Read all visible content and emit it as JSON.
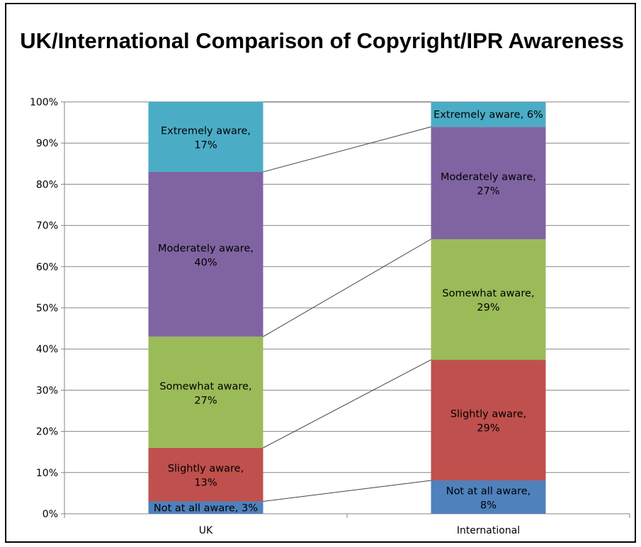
{
  "chart_data": {
    "type": "bar",
    "stacked": true,
    "percent_stacked": true,
    "title": "UK/International Comparison of Copyright/IPR Awareness",
    "categories": [
      "UK",
      "International"
    ],
    "series": [
      {
        "name": "Not at all aware",
        "color": "#4F81BD",
        "values": [
          3,
          8
        ],
        "labels": [
          "Not at all aware, 3%",
          "Not at all aware, 8%"
        ]
      },
      {
        "name": "Slightly aware",
        "color": "#C0504D",
        "values": [
          13,
          29
        ],
        "labels": [
          "Slightly aware, 13%",
          "Slightly aware, 29%"
        ]
      },
      {
        "name": "Somewhat aware",
        "color": "#9BBB59",
        "values": [
          27,
          29
        ],
        "labels": [
          "Somewhat aware, 27%",
          "Somewhat aware, 29%"
        ]
      },
      {
        "name": "Moderately aware",
        "color": "#8064A2",
        "values": [
          40,
          27
        ],
        "labels": [
          "Moderately aware, 40%",
          "Moderately aware, 27%"
        ]
      },
      {
        "name": "Extremely aware",
        "color": "#4BACC6",
        "values": [
          17,
          6
        ],
        "labels": [
          "Extremely aware, 17%",
          "Extremely aware, 6%"
        ]
      }
    ],
    "ylim": [
      0,
      100
    ],
    "yticks": [
      "0%",
      "10%",
      "20%",
      "30%",
      "40%",
      "50%",
      "60%",
      "70%",
      "80%",
      "90%",
      "100%"
    ],
    "grid": true,
    "series_lines": true,
    "legend": "none"
  }
}
